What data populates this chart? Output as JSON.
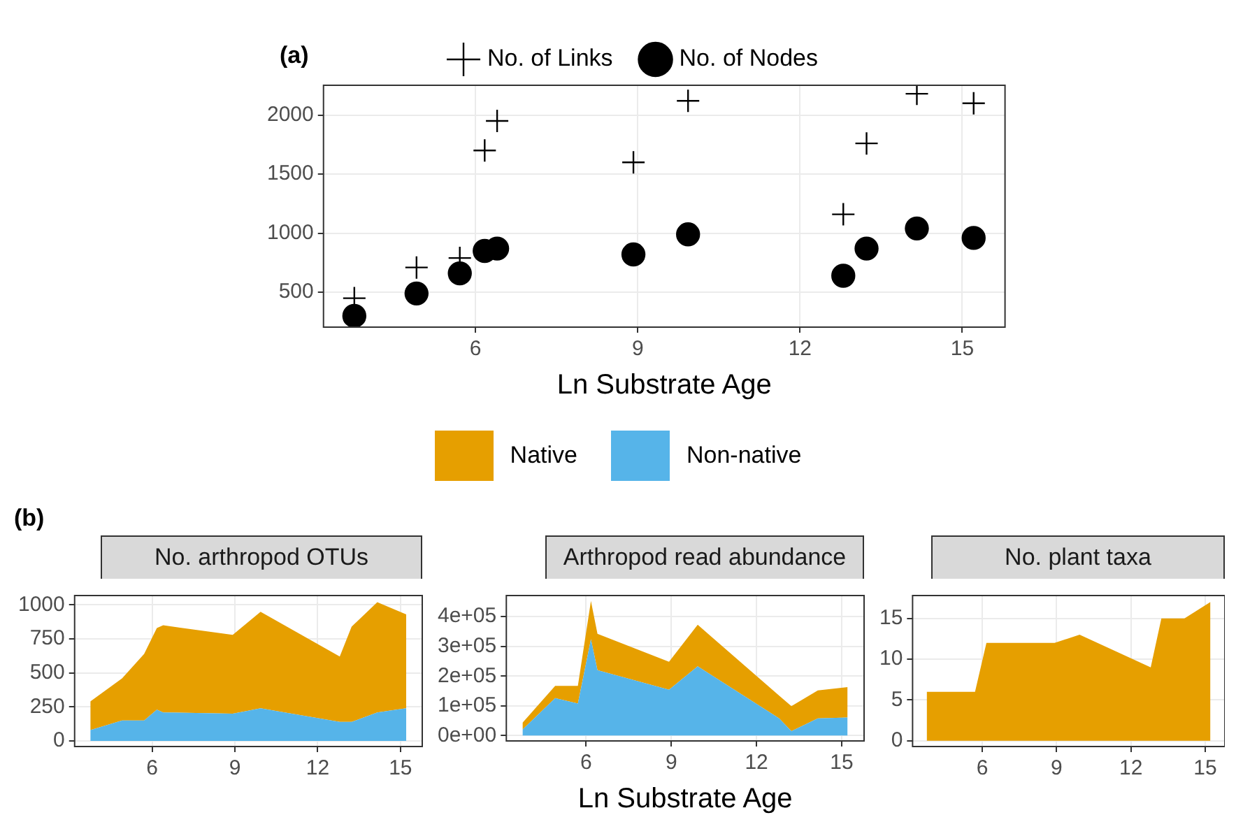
{
  "chart_data": [
    {
      "type": "scatter",
      "xlabel": "Ln Substrate Age",
      "annotations": [
        "(a)"
      ],
      "x": [
        3.76,
        4.91,
        5.71,
        6.17,
        6.4,
        8.92,
        9.93,
        12.8,
        13.23,
        14.16,
        15.21
      ],
      "series": [
        {
          "name": "No. of Links",
          "color": "#000000",
          "marker": "cross",
          "values": [
            450,
            710,
            790,
            1700,
            1950,
            1600,
            2120,
            1160,
            1760,
            2180,
            2100
          ]
        },
        {
          "name": "No. of Nodes",
          "color": "#000000",
          "marker": "circle",
          "values": [
            300,
            490,
            660,
            850,
            870,
            820,
            990,
            640,
            870,
            1040,
            960
          ]
        }
      ],
      "xlim": [
        3.19,
        15.79
      ],
      "ylim": [
        205,
        2252
      ],
      "xticks": [
        6,
        9,
        12,
        15
      ],
      "yticks": [
        500,
        1000,
        1500,
        2000
      ],
      "grid": true,
      "legend": "top"
    },
    {
      "type": "area",
      "stacked": true,
      "title": "No. arthropod OTUs",
      "annotations": [
        "(b)"
      ],
      "x": [
        3.76,
        4.91,
        5.71,
        6.17,
        6.4,
        8.92,
        9.93,
        12.8,
        13.23,
        14.16,
        15.21
      ],
      "series": [
        {
          "name": "Non-native",
          "color": "#56b4e9",
          "values": [
            80,
            150,
            150,
            230,
            210,
            200,
            240,
            140,
            140,
            210,
            240
          ]
        },
        {
          "name": "Native",
          "color": "#e69f00",
          "values": [
            210,
            310,
            490,
            600,
            640,
            580,
            710,
            480,
            700,
            810,
            690
          ]
        }
      ],
      "xlim": [
        3.19,
        15.79
      ],
      "ylim": [
        -41,
        1069
      ],
      "xticks": [
        6,
        9,
        12,
        15
      ],
      "yticks": [
        0,
        250,
        500,
        750,
        1000
      ],
      "grid": true,
      "legend": "top"
    },
    {
      "type": "area",
      "stacked": true,
      "title": "Arthropod read abundance",
      "xlabel": "Ln Substrate Age",
      "x": [
        3.76,
        4.91,
        5.71,
        6.17,
        6.4,
        8.92,
        9.93,
        12.8,
        13.23,
        14.16,
        15.21
      ],
      "series": [
        {
          "color": "#56b4e9",
          "values": [
            20000,
            126000,
            108000,
            324000,
            220000,
            154000,
            233000,
            58000,
            15000,
            58000,
            61000
          ]
        },
        {
          "color": "#e69f00",
          "values": [
            23000,
            41000,
            59000,
            129000,
            122000,
            94000,
            140000,
            76000,
            84000,
            94000,
            102000
          ]
        }
      ],
      "xlim": [
        3.19,
        15.79
      ],
      "ylim": [
        -18000,
        471000
      ],
      "xticks": [
        6,
        9,
        12,
        15
      ],
      "yticks": [
        {
          "value": 0,
          "label": "0e+00"
        },
        {
          "value": 100000,
          "label": "1e+05"
        },
        {
          "value": 200000,
          "label": "2e+05"
        },
        {
          "value": 300000,
          "label": "3e+05"
        },
        {
          "value": 400000,
          "label": "4e+05"
        }
      ],
      "grid": true
    },
    {
      "type": "area",
      "stacked": true,
      "title": "No. plant taxa",
      "x": [
        3.76,
        4.91,
        5.71,
        6.17,
        6.4,
        8.92,
        9.93,
        12.8,
        13.23,
        14.16,
        15.21
      ],
      "series": [
        {
          "color": "#e69f00",
          "values": [
            6,
            6,
            6,
            12,
            12,
            12,
            13,
            9,
            15,
            15,
            17
          ]
        }
      ],
      "xlim": [
        3.19,
        15.79
      ],
      "ylim": [
        -0.7,
        17.8
      ],
      "xticks": [
        6,
        9,
        12,
        15
      ],
      "yticks": [
        0,
        5,
        10,
        15
      ],
      "grid": true
    }
  ]
}
